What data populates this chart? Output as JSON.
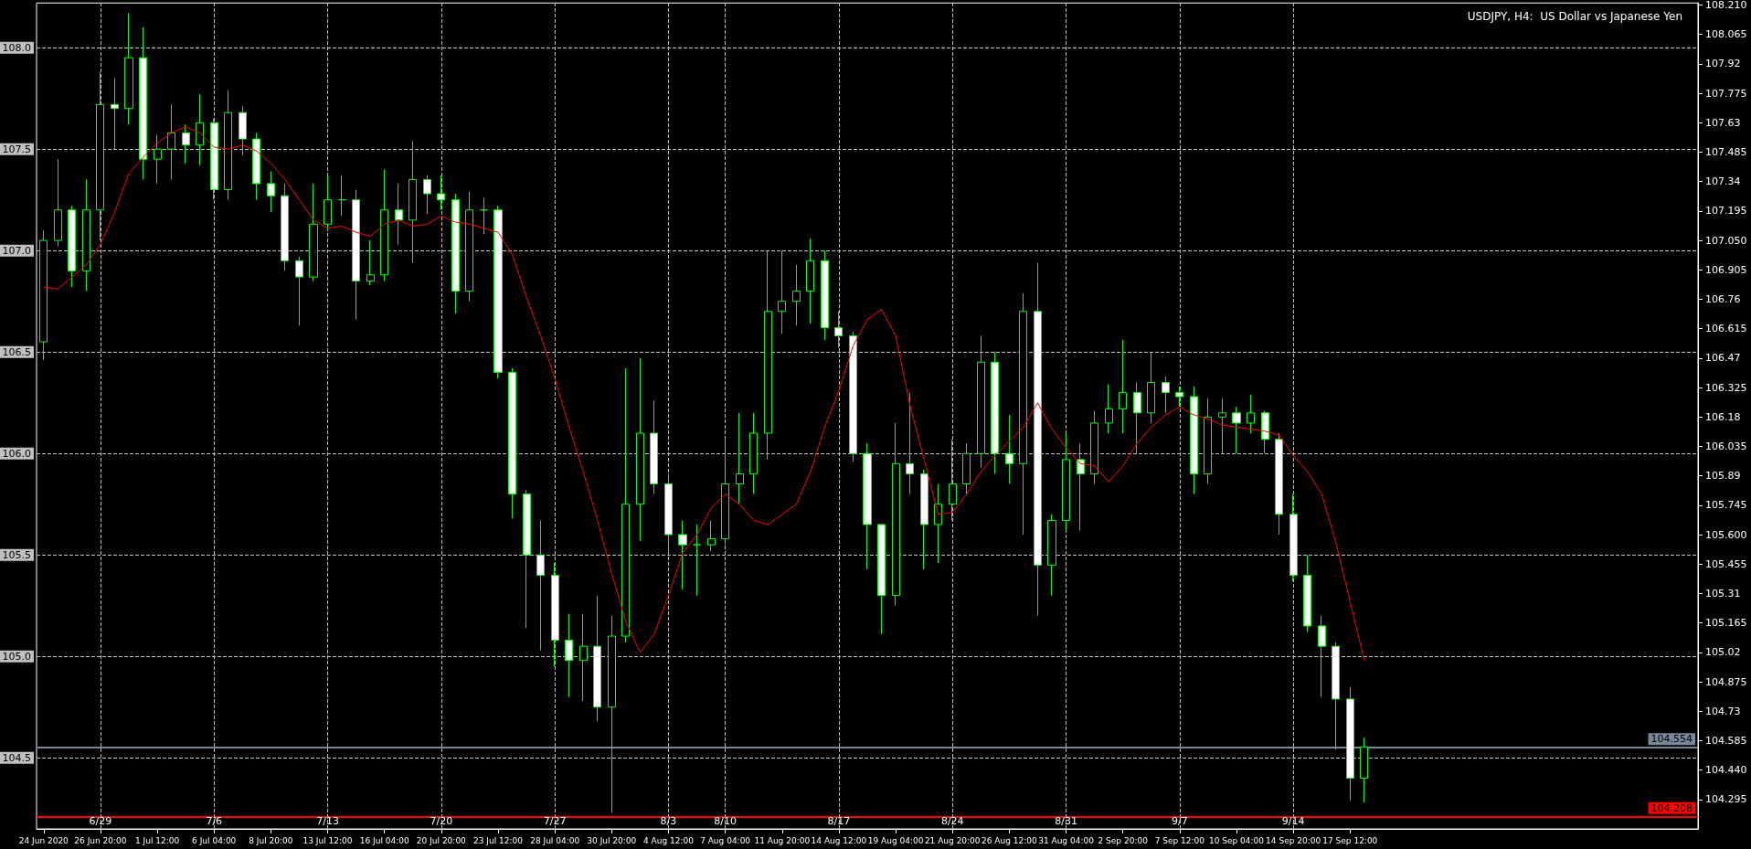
{
  "chart_data": {
    "type": "candlestick",
    "title": "USDJPY, H4:  US Dollar vs Japanese Yen",
    "categories": [
      "24 Jun 2020",
      null,
      null,
      null,
      "26 Jun 20:00",
      null,
      null,
      null,
      "1 Jul 12:00",
      null,
      null,
      null,
      "6 Jul 04:00",
      null,
      null,
      null,
      "8 Jul 20:00",
      null,
      null,
      null,
      "13 Jul 12:00",
      null,
      null,
      null,
      "16 Jul 04:00",
      null,
      null,
      null,
      "20 Jul 20:00",
      null,
      null,
      null,
      "23 Jul 12:00",
      null,
      null,
      null,
      "28 Jul 04:00",
      null,
      null,
      null,
      "30 Jul 20:00",
      null,
      null,
      null,
      "4 Aug 12:00",
      null,
      null,
      null,
      "7 Aug 04:00",
      null,
      null,
      null,
      "11 Aug 20:00",
      null,
      null,
      null,
      "14 Aug 12:00",
      null,
      null,
      null,
      "19 Aug 04:00",
      null,
      null,
      null,
      "21 Aug 20:00",
      null,
      null,
      null,
      "26 Aug 12:00",
      null,
      null,
      null,
      "31 Aug 04:00",
      null,
      null,
      null,
      "2 Sep 20:00",
      null,
      null,
      null,
      "7 Sep 12:00",
      null,
      null,
      null,
      "10 Sep 04:00",
      null,
      null,
      null,
      "14 Sep 20:00",
      null,
      null,
      null,
      "17 Sep 12:00",
      null
    ],
    "series": [
      {
        "color": "#00ff00",
        "ohlc": [
          [
            106.55,
            107.1,
            106.46,
            107.05
          ],
          [
            107.05,
            107.45,
            107.02,
            107.2
          ],
          [
            107.2,
            107.22,
            106.82,
            106.9
          ],
          [
            106.9,
            107.35,
            106.8,
            107.2
          ],
          [
            107.2,
            107.88,
            107.05,
            107.72
          ],
          [
            107.72,
            107.85,
            107.5,
            107.7
          ],
          [
            107.7,
            108.17,
            107.62,
            107.95
          ],
          [
            107.95,
            108.1,
            107.35,
            107.45
          ],
          [
            107.45,
            107.57,
            107.33,
            107.5
          ],
          [
            107.5,
            107.72,
            107.35,
            107.58
          ],
          [
            107.58,
            107.62,
            107.43,
            107.52
          ],
          [
            107.52,
            107.77,
            107.42,
            107.63
          ],
          [
            107.63,
            107.65,
            107.25,
            107.3
          ],
          [
            107.3,
            107.79,
            107.25,
            107.68
          ],
          [
            107.68,
            107.71,
            107.47,
            107.55
          ],
          [
            107.55,
            107.58,
            107.25,
            107.33
          ],
          [
            107.33,
            107.39,
            107.19,
            107.27
          ],
          [
            107.27,
            107.33,
            106.9,
            106.95
          ],
          [
            106.95,
            106.97,
            106.63,
            106.87
          ],
          [
            106.87,
            107.33,
            106.85,
            107.13
          ],
          [
            107.13,
            107.37,
            107.1,
            107.25
          ],
          [
            107.25,
            107.37,
            107.17,
            107.25
          ],
          [
            107.25,
            107.3,
            106.66,
            106.85
          ],
          [
            106.85,
            107.05,
            106.83,
            106.88
          ],
          [
            106.88,
            107.4,
            106.85,
            107.2
          ],
          [
            107.2,
            107.33,
            107.03,
            107.15
          ],
          [
            107.15,
            107.54,
            106.94,
            107.35
          ],
          [
            107.35,
            107.37,
            107.18,
            107.28
          ],
          [
            107.28,
            107.37,
            107.2,
            107.25
          ],
          [
            107.25,
            107.28,
            106.69,
            106.8
          ],
          [
            106.8,
            107.29,
            106.75,
            107.2
          ],
          [
            107.2,
            107.26,
            107.08,
            107.2
          ],
          [
            107.2,
            107.22,
            106.37,
            106.4
          ],
          [
            106.4,
            106.42,
            105.68,
            105.8
          ],
          [
            105.8,
            105.82,
            105.14,
            105.5
          ],
          [
            105.5,
            105.67,
            105.03,
            105.4
          ],
          [
            105.4,
            105.46,
            104.95,
            105.08
          ],
          [
            105.08,
            105.21,
            104.8,
            104.98
          ],
          [
            104.98,
            105.21,
            104.78,
            105.05
          ],
          [
            105.05,
            105.3,
            104.68,
            104.75
          ],
          [
            104.75,
            105.2,
            104.23,
            105.1
          ],
          [
            105.1,
            106.42,
            105.07,
            105.75
          ],
          [
            105.75,
            106.47,
            105.57,
            106.1
          ],
          [
            106.1,
            106.26,
            105.8,
            105.85
          ],
          [
            105.85,
            105.9,
            105.51,
            105.6
          ],
          [
            105.6,
            105.67,
            105.33,
            105.55
          ],
          [
            105.55,
            105.65,
            105.3,
            105.55
          ],
          [
            105.55,
            105.67,
            105.52,
            105.58
          ],
          [
            105.58,
            106.07,
            105.55,
            105.85
          ],
          [
            105.85,
            106.2,
            105.75,
            105.9
          ],
          [
            105.9,
            106.2,
            105.8,
            106.1
          ],
          [
            106.1,
            107.0,
            105.97,
            106.7
          ],
          [
            106.7,
            107.0,
            106.59,
            106.75
          ],
          [
            106.75,
            106.93,
            106.63,
            106.8
          ],
          [
            106.8,
            107.06,
            106.64,
            106.95
          ],
          [
            106.95,
            107.0,
            106.56,
            106.62
          ],
          [
            106.62,
            106.7,
            106.52,
            106.58
          ],
          [
            106.58,
            106.6,
            105.96,
            106.0
          ],
          [
            106.0,
            106.05,
            105.43,
            105.65
          ],
          [
            105.65,
            105.65,
            105.11,
            105.3
          ],
          [
            105.3,
            106.15,
            105.25,
            105.95
          ],
          [
            105.95,
            106.3,
            105.8,
            105.9
          ],
          [
            105.9,
            105.92,
            105.43,
            105.65
          ],
          [
            105.65,
            105.85,
            105.46,
            105.75
          ],
          [
            105.75,
            106.07,
            105.67,
            105.85
          ],
          [
            105.85,
            106.05,
            105.8,
            106.0
          ],
          [
            106.0,
            106.58,
            105.93,
            106.45
          ],
          [
            106.45,
            106.5,
            105.9,
            106.0
          ],
          [
            106.0,
            106.19,
            105.85,
            105.95
          ],
          [
            105.95,
            106.79,
            105.6,
            106.7
          ],
          [
            106.7,
            106.94,
            105.2,
            105.45
          ],
          [
            105.45,
            105.7,
            105.3,
            105.67
          ],
          [
            105.67,
            106.1,
            105.62,
            105.97
          ],
          [
            105.97,
            106.05,
            105.62,
            105.9
          ],
          [
            105.9,
            106.21,
            105.85,
            106.15
          ],
          [
            106.15,
            106.34,
            106.1,
            106.22
          ],
          [
            106.22,
            106.56,
            106.1,
            106.3
          ],
          [
            106.3,
            106.35,
            106.0,
            106.2
          ],
          [
            106.2,
            106.5,
            106.15,
            106.35
          ],
          [
            106.35,
            106.38,
            106.2,
            106.3
          ],
          [
            106.3,
            106.33,
            106.23,
            106.28
          ],
          [
            106.28,
            106.33,
            105.8,
            105.9
          ],
          [
            105.9,
            106.27,
            105.85,
            106.18
          ],
          [
            106.18,
            106.27,
            106.0,
            106.2
          ],
          [
            106.2,
            106.23,
            106.0,
            106.15
          ],
          [
            106.15,
            106.29,
            106.1,
            106.2
          ],
          [
            106.2,
            106.21,
            106.0,
            106.07
          ],
          [
            106.07,
            106.1,
            105.6,
            105.7
          ],
          [
            105.7,
            105.8,
            105.37,
            105.4
          ],
          [
            105.4,
            105.5,
            105.12,
            105.15
          ],
          [
            105.15,
            105.2,
            104.8,
            105.05
          ],
          [
            105.05,
            105.07,
            104.54,
            104.79
          ],
          [
            104.79,
            104.85,
            104.29,
            104.4
          ],
          [
            104.4,
            104.6,
            104.28,
            104.554
          ]
        ]
      },
      {
        "type": "line",
        "color": "#ff0000",
        "values": [
          106.82,
          106.81,
          106.87,
          106.93,
          107.03,
          107.19,
          107.38,
          107.46,
          107.53,
          107.58,
          107.61,
          107.58,
          107.51,
          107.5,
          107.52,
          107.49,
          107.43,
          107.35,
          107.25,
          107.15,
          107.11,
          107.12,
          107.09,
          107.07,
          107.13,
          107.15,
          107.12,
          107.13,
          107.17,
          107.14,
          107.13,
          107.11,
          107.09,
          106.98,
          106.77,
          106.58,
          106.37,
          106.13,
          105.91,
          105.67,
          105.41,
          105.17,
          105.02,
          105.11,
          105.3,
          105.51,
          105.6,
          105.73,
          105.8,
          105.75,
          105.67,
          105.65,
          105.7,
          105.75,
          105.91,
          106.13,
          106.31,
          106.53,
          106.66,
          106.71,
          106.58,
          106.24,
          105.97,
          105.7,
          105.71,
          105.8,
          105.91,
          105.99,
          106.06,
          106.13,
          106.25,
          106.12,
          106.03,
          105.95,
          105.94,
          105.86,
          105.94,
          106.05,
          106.13,
          106.19,
          106.23,
          106.19,
          106.17,
          106.14,
          106.13,
          106.12,
          106.11,
          106.09,
          105.99,
          105.91,
          105.8,
          105.56,
          105.27,
          104.98
        ]
      }
    ],
    "ylim": [
      104.15,
      108.22
    ],
    "yticks": [
      104.295,
      {
        "value": 104.44,
        "label": "104.440"
      },
      104.585,
      104.73,
      104.875,
      105.02,
      105.165,
      105.31,
      105.455,
      {
        "value": 105.6,
        "label": "105.600"
      },
      105.745,
      105.89,
      106.035,
      106.18,
      106.325,
      106.47,
      106.615,
      106.76,
      106.905,
      {
        "value": 107.05,
        "label": "107.050"
      },
      107.195,
      107.34,
      107.485,
      107.63,
      107.775,
      107.92,
      108.065,
      {
        "value": 108.21,
        "label": "108.210"
      }
    ],
    "ref_lines": [
      {
        "axis": "y",
        "value": 108.0,
        "label": "108.0",
        "color": "#c0c0c0",
        "line_style": "dashed"
      },
      {
        "axis": "y",
        "value": 107.5,
        "label": "107.5",
        "color": "#c0c0c0",
        "line_style": "dashed"
      },
      {
        "axis": "y",
        "value": 107.0,
        "label": "107.0",
        "color": "#c0c0c0",
        "line_style": "dashed"
      },
      {
        "axis": "y",
        "value": 106.5,
        "label": "106.5",
        "color": "#c0c0c0",
        "line_style": "dashed"
      },
      {
        "axis": "y",
        "value": 106.0,
        "label": "106.0",
        "color": "#c0c0c0",
        "line_style": "dashed"
      },
      {
        "axis": "y",
        "value": 105.5,
        "label": "105.5",
        "color": "#c0c0c0",
        "line_style": "dashed"
      },
      {
        "axis": "y",
        "value": 105.0,
        "label": "105.0",
        "color": "#c0c0c0",
        "line_style": "dashed"
      },
      {
        "axis": "y",
        "value": 104.5,
        "label": "104.5",
        "color": "#c0c0c0",
        "line_style": "dashed"
      },
      {
        "axis": "y",
        "value": 104.554,
        "label": "104.554",
        "color": "#778899",
        "line_style": "solid"
      },
      {
        "axis": "y",
        "value": 104.208,
        "label": "104.208",
        "color": "#ff0000",
        "line_style": "solid"
      },
      {
        "axis": "x",
        "value": "26 Jun 20:00",
        "label": "6/29",
        "color": "#c0c0c0",
        "line_style": "dashed"
      },
      {
        "axis": "x",
        "value": "6 Jul 04:00",
        "label": "7/6",
        "color": "#c0c0c0",
        "line_style": "dashed"
      },
      {
        "axis": "x",
        "value": "13 Jul 12:00",
        "label": "7/13",
        "color": "#c0c0c0",
        "line_style": "dashed"
      },
      {
        "axis": "x",
        "value": "20 Jul 20:00",
        "label": "7/20",
        "color": "#c0c0c0",
        "line_style": "dashed"
      },
      {
        "axis": "x",
        "value": "28 Jul 04:00",
        "label": "7/27",
        "color": "#c0c0c0",
        "line_style": "dashed"
      },
      {
        "axis": "x",
        "value": "4 Aug 12:00",
        "label": "8/3",
        "color": "#c0c0c0",
        "line_style": "dashed"
      },
      {
        "axis": "x",
        "value": "7 Aug 04:00",
        "label": "8/10",
        "color": "#c0c0c0",
        "line_style": "dashed"
      },
      {
        "axis": "x",
        "value": "14 Aug 12:00",
        "label": "8/17",
        "color": "#c0c0c0",
        "line_style": "dashed"
      },
      {
        "axis": "x",
        "value": "21 Aug 20:00",
        "label": "8/24",
        "color": "#c0c0c0",
        "line_style": "dashed"
      },
      {
        "axis": "x",
        "value": "31 Aug 04:00",
        "label": "8/31",
        "color": "#c0c0c0",
        "line_style": "dashed"
      },
      {
        "axis": "x",
        "value": "7 Sep 12:00",
        "label": "9/7",
        "color": "#c0c0c0",
        "line_style": "dashed"
      },
      {
        "axis": "x",
        "value": "14 Sep 20:00",
        "label": "9/14",
        "color": "#c0c0c0",
        "line_style": "dashed"
      }
    ],
    "marker": "none",
    "line_style": "solid"
  }
}
